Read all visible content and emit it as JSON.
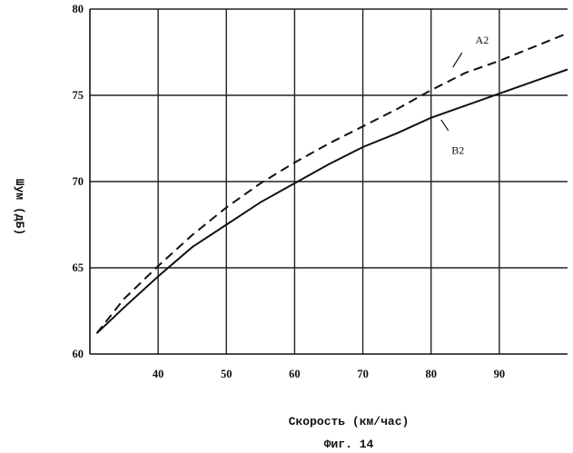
{
  "chart_data": {
    "type": "line",
    "xlabel": "Скорость (км/час)",
    "ylabel": "Шум (дБ)",
    "caption": "Фиг. 14",
    "xlim": [
      30,
      100
    ],
    "ylim": [
      60,
      80
    ],
    "x_ticks": [
      40,
      50,
      60,
      70,
      80,
      90
    ],
    "y_ticks": [
      60,
      65,
      70,
      75,
      80
    ],
    "grid": true,
    "series": [
      {
        "name": "A2",
        "style": "dashed",
        "x": [
          31,
          35,
          40,
          45,
          50,
          55,
          60,
          65,
          70,
          75,
          80,
          85,
          90,
          95,
          100
        ],
        "y": [
          61.2,
          63.2,
          65.1,
          66.9,
          68.5,
          69.9,
          71.1,
          72.2,
          73.2,
          74.2,
          75.3,
          76.3,
          77.0,
          77.8,
          78.6
        ]
      },
      {
        "name": "B2",
        "style": "solid",
        "x": [
          31,
          35,
          40,
          45,
          50,
          55,
          60,
          65,
          70,
          75,
          80,
          85,
          90,
          95,
          100
        ],
        "y": [
          61.2,
          62.7,
          64.5,
          66.2,
          67.5,
          68.8,
          69.9,
          71.0,
          72.0,
          72.8,
          73.7,
          74.4,
          75.1,
          75.8,
          76.5
        ]
      }
    ]
  }
}
